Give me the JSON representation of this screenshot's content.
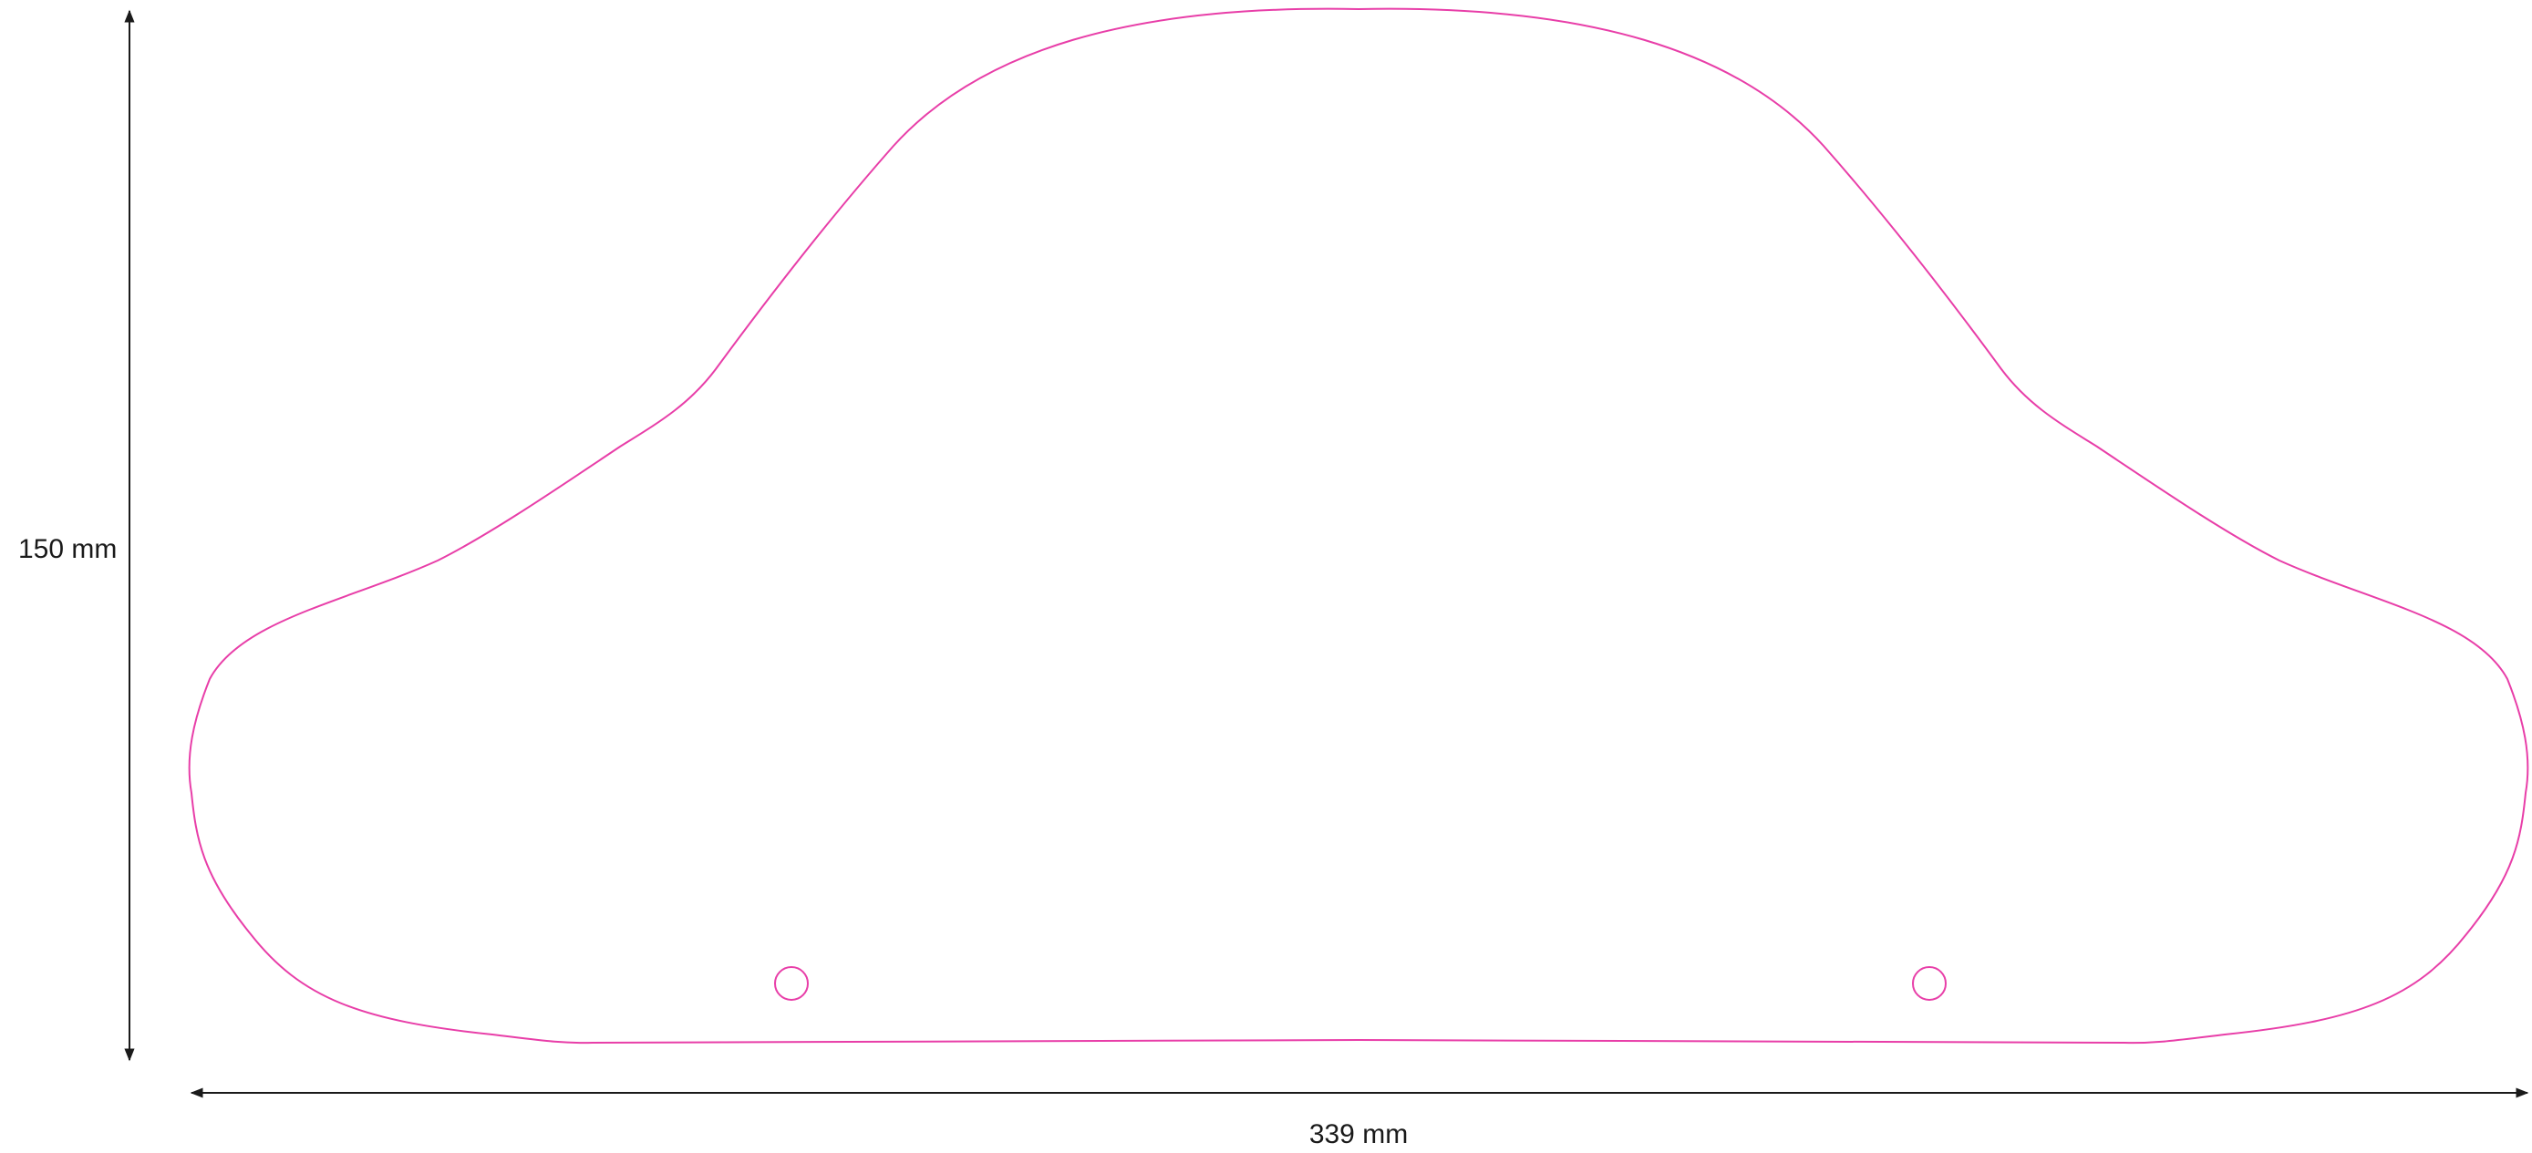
{
  "dimensions": {
    "height_label": "150 mm",
    "width_label": "339 mm"
  },
  "colors": {
    "outline": "#e83ea8",
    "dimension_line": "#1a1a1a"
  }
}
